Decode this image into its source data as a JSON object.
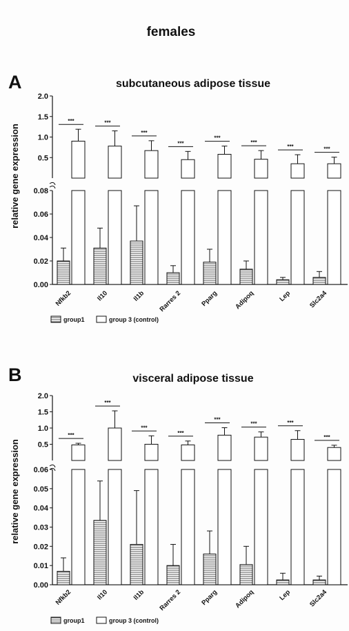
{
  "figure_title": "females",
  "legend": {
    "group1_label": "group1",
    "group3_label": "group 3 (control)"
  },
  "colors": {
    "group1_hatch": "#555555",
    "bar_stroke": "#111111",
    "group3_fill": "#ffffff"
  },
  "chart_data": [
    {
      "panel": "A",
      "type": "bar",
      "title": "subcutaneous adipose tissue",
      "ylabel": "relative gene expression",
      "broken_axis": true,
      "lower_ylim": [
        0,
        0.08
      ],
      "lower_ticks": [
        "0.00",
        "0.02",
        "0.04",
        "0.06",
        "0.08"
      ],
      "upper_ylim": [
        0.0,
        2.0
      ],
      "upper_ticks": [
        "0.5",
        "1.0",
        "1.5",
        "2.0"
      ],
      "categories": [
        "Nfkb2",
        "Il10",
        "Il1b",
        "Rarres 2",
        "Pparg",
        "Adipoq",
        "Lep",
        "Slc2a4"
      ],
      "significance": [
        "***",
        "***",
        "***",
        "***",
        "***",
        "***",
        "***",
        "***"
      ],
      "series": [
        {
          "name": "group1",
          "values": [
            0.02,
            0.031,
            0.037,
            0.01,
            0.019,
            0.013,
            0.004,
            0.006
          ],
          "errors": [
            0.011,
            0.017,
            0.03,
            0.006,
            0.011,
            0.007,
            0.002,
            0.005
          ]
        },
        {
          "name": "group 3 (control)",
          "values": [
            0.9,
            0.78,
            0.67,
            0.45,
            0.58,
            0.46,
            0.35,
            0.35
          ],
          "errors": [
            0.29,
            0.37,
            0.24,
            0.2,
            0.2,
            0.21,
            0.22,
            0.16
          ]
        }
      ]
    },
    {
      "panel": "B",
      "type": "bar",
      "title": "visceral adipose tissue",
      "ylabel": "relative gene expression",
      "broken_axis": true,
      "lower_ylim": [
        0,
        0.06
      ],
      "lower_ticks": [
        "0.00",
        "0.01",
        "0.02",
        "0.03",
        "0.04",
        "0.05",
        "0.06"
      ],
      "upper_ylim": [
        0.0,
        2.0
      ],
      "upper_ticks": [
        "0.5",
        "1.0",
        "1.5",
        "2.0"
      ],
      "categories": [
        "Nfkb2",
        "Il10",
        "Il1b",
        "Rarres 2",
        "Pparg",
        "Adipoq",
        "Lep",
        "Slc2a4"
      ],
      "significance": [
        "***",
        "***",
        "***",
        "***",
        "***",
        "***",
        "***",
        "***"
      ],
      "series": [
        {
          "name": "group1",
          "values": [
            0.007,
            0.0335,
            0.021,
            0.01,
            0.016,
            0.0105,
            0.0025,
            0.0025
          ],
          "errors": [
            0.007,
            0.0205,
            0.028,
            0.011,
            0.012,
            0.0095,
            0.0035,
            0.002
          ]
        },
        {
          "name": "group 3 (control)",
          "values": [
            0.48,
            1.0,
            0.5,
            0.48,
            0.78,
            0.72,
            0.65,
            0.4
          ],
          "errors": [
            0.05,
            0.53,
            0.26,
            0.12,
            0.23,
            0.16,
            0.27,
            0.07
          ]
        }
      ]
    }
  ]
}
